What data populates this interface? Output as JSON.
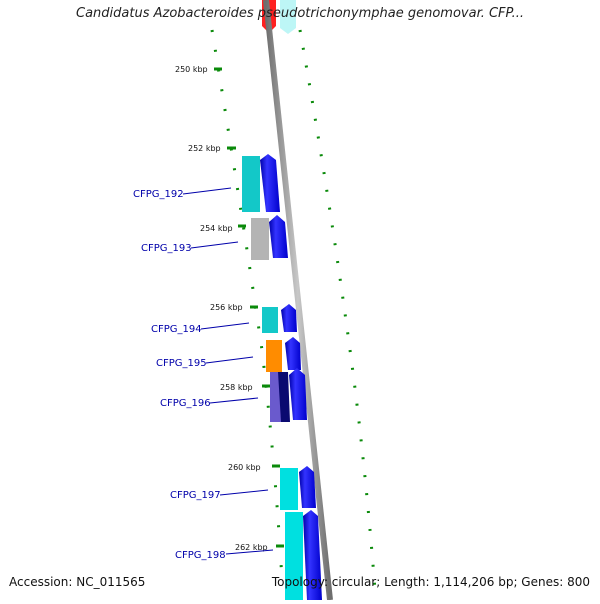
{
  "header": {
    "title": "Candidatus Azobacteroides pseudotrichonymphae genomovar. CFP..."
  },
  "footer": {
    "accession": "Accession: NC_011565",
    "summary": "Topology: circular; Length: 1,114,206 bp; Genes: 800"
  },
  "scale_labels": [
    "250 kbp",
    "252 kbp",
    "254 kbp",
    "256 kbp",
    "258 kbp",
    "260 kbp",
    "262 kbp"
  ],
  "genes": [
    {
      "name": "CFPG_192",
      "color": "#13c8c8"
    },
    {
      "name": "CFPG_193",
      "color": "#b4b4b4"
    },
    {
      "name": "CFPG_194",
      "color": "#13c8c8"
    },
    {
      "name": "CFPG_195",
      "color": "#ff8c00"
    },
    {
      "name": "CFPG_196",
      "color": "#6a5acd"
    },
    {
      "name": "CFPG_197",
      "color": "#00e0e0"
    },
    {
      "name": "CFPG_198",
      "color": "#00e0e0"
    }
  ],
  "colors": {
    "cds_strand": "#0000ee",
    "gc_skew": "#0a8a0a",
    "backbone": "#8c8c8c",
    "label": "#0000aa"
  }
}
